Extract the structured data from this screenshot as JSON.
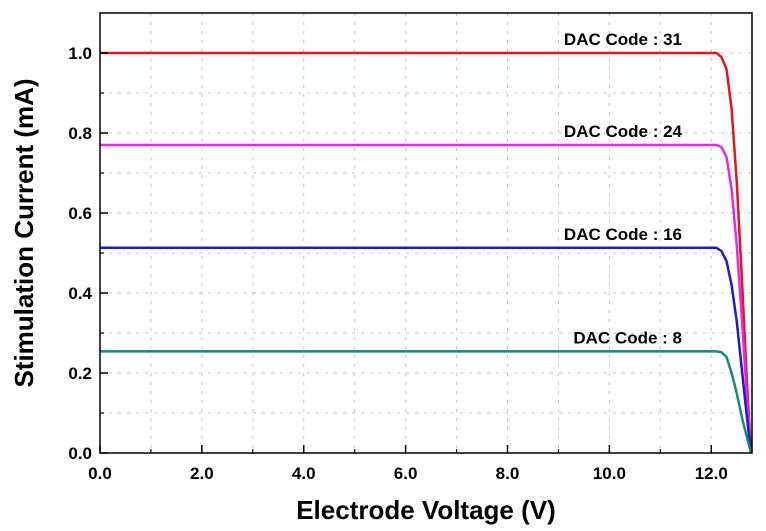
{
  "chart_data": {
    "type": "line",
    "xlabel": "Electrode Voltage (V)",
    "ylabel": "Stimulation Current (mA)",
    "xlim": [
      0,
      12.8
    ],
    "ylim": [
      0,
      1.1
    ],
    "grid": true,
    "x_ticks": [
      0,
      2,
      4,
      6,
      8,
      10,
      12
    ],
    "x_tick_labels": [
      "0.0",
      "2.0",
      "4.0",
      "6.0",
      "8.0",
      "10.0",
      "12.0"
    ],
    "y_ticks": [
      0,
      0.2,
      0.4,
      0.6,
      0.8,
      1.0
    ],
    "y_tick_labels": [
      "0.0",
      "0.2",
      "0.4",
      "0.6",
      "0.8",
      "1.0"
    ],
    "series": [
      {
        "label": "DAC Code : 31",
        "color": "#e8141c",
        "x": [
          0,
          12.1,
          12.2,
          12.3,
          12.4,
          12.5,
          12.6,
          12.7,
          12.78
        ],
        "y": [
          1.0,
          1.0,
          0.99,
          0.96,
          0.86,
          0.68,
          0.44,
          0.18,
          0
        ]
      },
      {
        "label": "DAC Code : 24",
        "color": "#e629e6",
        "x": [
          0,
          12.1,
          12.2,
          12.3,
          12.4,
          12.5,
          12.6,
          12.7,
          12.78
        ],
        "y": [
          0.77,
          0.77,
          0.765,
          0.74,
          0.66,
          0.52,
          0.34,
          0.14,
          0
        ]
      },
      {
        "label": "DAC Code : 16",
        "color": "#1c1ccc",
        "x": [
          0,
          12.1,
          12.2,
          12.3,
          12.4,
          12.5,
          12.6,
          12.7,
          12.78
        ],
        "y": [
          0.513,
          0.513,
          0.505,
          0.48,
          0.42,
          0.33,
          0.21,
          0.09,
          0
        ]
      },
      {
        "label": "DAC Code : 8",
        "color": "#128a7e",
        "x": [
          0,
          12.1,
          12.2,
          12.3,
          12.4,
          12.5,
          12.6,
          12.7,
          12.78
        ],
        "y": [
          0.254,
          0.254,
          0.252,
          0.24,
          0.2,
          0.15,
          0.09,
          0.04,
          0
        ]
      }
    ]
  }
}
